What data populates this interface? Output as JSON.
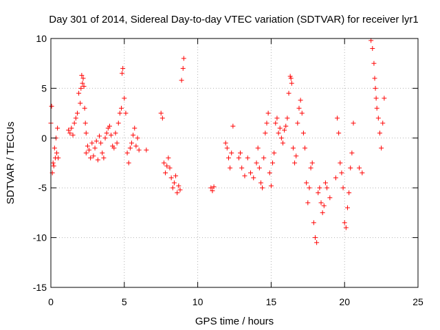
{
  "chart_data": {
    "type": "scatter",
    "title": "Day 301 of 2014, Sidereal Day-to-day VTEC variation (SDTVAR) for receiver lyr1",
    "xlabel": "GPS time / hours",
    "ylabel": "SDTVAR / TECUs",
    "xlim": [
      0,
      25
    ],
    "ylim": [
      -15,
      10
    ],
    "xticks": [
      0,
      5,
      10,
      15,
      20,
      25
    ],
    "yticks": [
      -15,
      -10,
      -5,
      0,
      5,
      10
    ],
    "grid": true,
    "marker": "plus",
    "color": "#ff0000",
    "segments": [
      {
        "name": "0.0-0.5h",
        "x": [
          0.0,
          0.05,
          0.1,
          0.15,
          0.2,
          0.25,
          0.3,
          0.35,
          0.4,
          0.45,
          0.5
        ],
        "y": [
          1.5,
          3.2,
          -3.5,
          -2.5,
          -2.8,
          -1.0,
          -2.0,
          0.0,
          -1.5,
          1.0,
          -2.0
        ]
      },
      {
        "name": "1.2-2.4h",
        "x": [
          1.2,
          1.3,
          1.4,
          1.5,
          1.6,
          1.7,
          1.8,
          1.9,
          2.0,
          2.05,
          2.1,
          2.15,
          2.2,
          2.25,
          2.3,
          2.35,
          2.4
        ],
        "y": [
          0.8,
          0.5,
          1.0,
          0.3,
          1.5,
          2.0,
          2.5,
          4.5,
          3.5,
          5.0,
          6.3,
          5.5,
          6.0,
          5.2,
          3.0,
          1.5,
          0.5
        ]
      },
      {
        "name": "2.4-4.2h",
        "x": [
          2.4,
          2.5,
          2.6,
          2.7,
          2.8,
          2.9,
          3.0,
          3.1,
          3.2,
          3.3,
          3.4,
          3.5,
          3.6,
          3.7,
          3.8,
          3.9,
          4.0,
          4.1,
          4.2
        ],
        "y": [
          -1.5,
          -0.8,
          -1.2,
          -2.0,
          -0.5,
          -1.8,
          -1.0,
          -0.3,
          -2.2,
          0.2,
          -0.5,
          -1.5,
          -2.0,
          0.0,
          0.5,
          1.0,
          1.2,
          0.3,
          -0.8
        ]
      },
      {
        "name": "4.2-6.2h",
        "x": [
          4.3,
          4.4,
          4.5,
          4.6,
          4.7,
          4.8,
          4.85,
          4.9,
          5.0,
          5.1,
          5.2,
          5.3,
          5.4,
          5.5,
          5.6,
          5.7,
          5.8,
          5.9,
          6.0,
          6.5
        ],
        "y": [
          -1.0,
          0.5,
          -0.5,
          1.5,
          2.5,
          3.0,
          6.5,
          7.0,
          4.0,
          2.5,
          -1.5,
          -2.5,
          -1.0,
          -0.5,
          0.3,
          1.0,
          -0.8,
          0.0,
          -1.2,
          -1.2
        ]
      },
      {
        "name": "7.5-9.1h",
        "x": [
          7.5,
          7.6,
          7.7,
          7.8,
          7.9,
          8.0,
          8.1,
          8.2,
          8.3,
          8.4,
          8.5,
          8.6,
          8.7,
          8.8,
          8.9,
          9.0,
          9.05
        ],
        "y": [
          2.5,
          2.0,
          -2.5,
          -3.5,
          -2.8,
          -2.0,
          -3.0,
          -4.0,
          -5.0,
          -4.5,
          -3.8,
          -5.5,
          -4.8,
          -5.2,
          5.8,
          7.0,
          8.0
        ]
      },
      {
        "name": "11.0h",
        "x": [
          10.9,
          11.0,
          11.1
        ],
        "y": [
          -5.0,
          -5.3,
          -4.9
        ]
      },
      {
        "name": "11.9-14.0h",
        "x": [
          11.9,
          12.0,
          12.1,
          12.2,
          12.3,
          12.4,
          12.8,
          12.9,
          13.0,
          13.2,
          13.4,
          13.6,
          13.8,
          14.0
        ],
        "y": [
          -0.5,
          -1.0,
          -2.0,
          -3.0,
          -1.5,
          1.2,
          -2.0,
          -1.5,
          -3.0,
          -3.8,
          -2.0,
          -3.5,
          -4.0,
          -2.5
        ]
      },
      {
        "name": "14.0-16.0h",
        "x": [
          14.1,
          14.2,
          14.3,
          14.4,
          14.5,
          14.6,
          14.7,
          14.8,
          14.9,
          15.0,
          15.1,
          15.2,
          15.3,
          15.4,
          15.5,
          15.6,
          15.7,
          15.8,
          15.9,
          16.0
        ],
        "y": [
          -1.0,
          -3.0,
          -4.5,
          -5.0,
          -2.0,
          0.5,
          1.5,
          2.5,
          -3.5,
          -4.8,
          -2.5,
          -1.5,
          1.5,
          2.0,
          0.5,
          1.0,
          0.0,
          -0.5,
          0.8,
          1.2
        ]
      },
      {
        "name": "16.0-17.8h",
        "x": [
          16.1,
          16.2,
          16.3,
          16.35,
          16.4,
          16.5,
          16.6,
          16.7,
          16.8,
          16.9,
          17.0,
          17.1,
          17.2,
          17.3,
          17.4,
          17.5,
          17.6,
          17.7,
          17.8
        ],
        "y": [
          2.0,
          4.5,
          6.2,
          6.0,
          5.5,
          -1.0,
          -2.5,
          -1.8,
          1.5,
          3.0,
          3.8,
          2.5,
          0.5,
          -1.0,
          -4.5,
          -6.5,
          -5.0,
          -3.0,
          -2.5
        ]
      },
      {
        "name": "18.0-19.0h",
        "x": [
          17.9,
          18.0,
          18.1,
          18.2,
          18.3,
          18.4,
          18.5,
          18.6,
          18.7,
          18.8,
          19.0
        ],
        "y": [
          -8.5,
          -10.0,
          -10.5,
          -5.5,
          -5.0,
          -6.5,
          -7.5,
          -6.8,
          -4.5,
          -5.0,
          -6.0
        ]
      },
      {
        "name": "19.5-20.6h",
        "x": [
          19.4,
          19.5,
          19.6,
          19.7,
          19.8,
          19.9,
          20.0,
          20.1,
          20.2,
          20.3,
          20.4,
          20.5,
          20.6
        ],
        "y": [
          -4.0,
          2.0,
          0.5,
          -2.5,
          -3.5,
          -5.0,
          -8.5,
          -9.0,
          -7.0,
          -5.5,
          -3.0,
          -1.5,
          1.5
        ]
      },
      {
        "name": "21.0-22.7h",
        "x": [
          21.0,
          21.2,
          21.8,
          21.9,
          22.0,
          22.05,
          22.1,
          22.15,
          22.2,
          22.3,
          22.4,
          22.5,
          22.6,
          22.7
        ],
        "y": [
          -3.0,
          -3.5,
          9.8,
          9.0,
          7.5,
          6.0,
          5.0,
          4.0,
          3.0,
          2.0,
          0.5,
          -1.0,
          1.5,
          4.0
        ]
      }
    ]
  }
}
